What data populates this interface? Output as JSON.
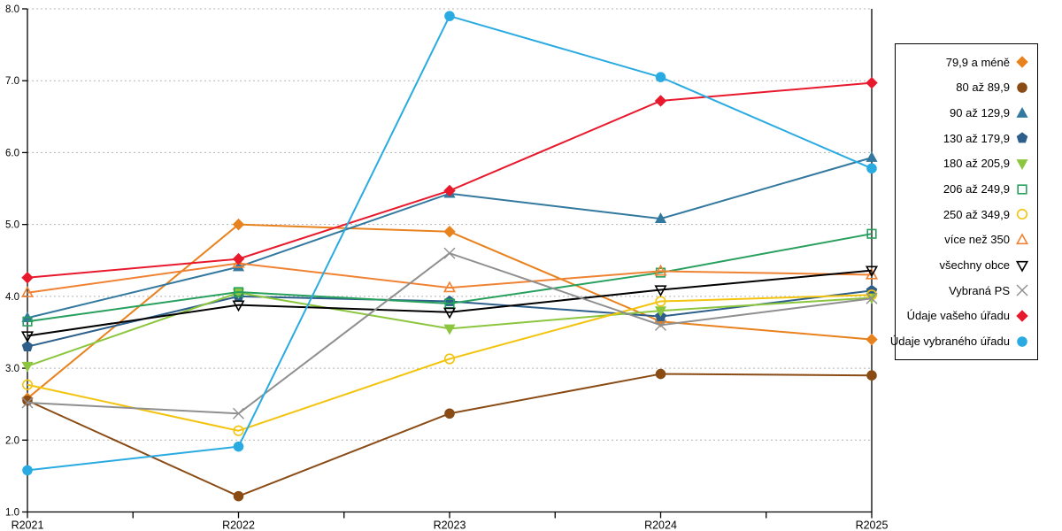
{
  "chart_data": {
    "type": "line",
    "title": "",
    "xlabel": "",
    "ylabel": "",
    "categories": [
      "R2021",
      "R2022",
      "R2023",
      "R2024",
      "R2025"
    ],
    "ylim": [
      1.0,
      8.0
    ],
    "y_tick_labels": [
      "8.0",
      "7.0",
      "6.0",
      "5.0",
      "4.0",
      "3.0",
      "2.0",
      "1.0"
    ],
    "grid": "horizontal-dotted",
    "legend_position": "right-outside",
    "colors": {
      "axis": "#000000",
      "gridline": "#b3b3b3",
      "background": "#ffffff"
    },
    "series": [
      {
        "name": "79,9 a méně",
        "marker": "diamond",
        "fill": "solid",
        "color": "#e8821e",
        "values": [
          2.58,
          5.0,
          4.9,
          3.65,
          3.4
        ]
      },
      {
        "name": "80 až 89,9",
        "marker": "circle",
        "fill": "solid",
        "color": "#8a4b15",
        "values": [
          2.55,
          1.22,
          2.37,
          2.92,
          2.9
        ]
      },
      {
        "name": "90 až 129,9",
        "marker": "triangle-up",
        "fill": "solid",
        "color": "#33789f",
        "values": [
          3.7,
          4.41,
          5.43,
          5.08,
          5.93
        ]
      },
      {
        "name": "130 až 179,9",
        "marker": "pentagon",
        "fill": "solid",
        "color": "#2d5f8a",
        "values": [
          3.3,
          4.0,
          3.93,
          3.72,
          4.08
        ]
      },
      {
        "name": "180 až 205,9",
        "marker": "triangle-down",
        "fill": "solid",
        "color": "#8cc63f",
        "values": [
          3.03,
          4.05,
          3.55,
          3.8,
          3.98
        ]
      },
      {
        "name": "206 až 249,9",
        "marker": "square",
        "fill": "open",
        "color": "#27a05d",
        "values": [
          3.65,
          4.06,
          3.9,
          4.33,
          4.87
        ]
      },
      {
        "name": "250 až 349,9",
        "marker": "circle",
        "fill": "open",
        "color": "#f3c40f",
        "values": [
          2.77,
          2.13,
          3.13,
          3.93,
          4.02
        ]
      },
      {
        "name": "více než 350",
        "marker": "triangle-up",
        "fill": "open",
        "color": "#f08233",
        "values": [
          4.05,
          4.46,
          4.12,
          4.35,
          4.3
        ]
      },
      {
        "name": "všechny obce",
        "marker": "triangle-down",
        "fill": "open",
        "color": "#000000",
        "values": [
          3.45,
          3.88,
          3.78,
          4.09,
          4.36
        ]
      },
      {
        "name": "Vybraná PS",
        "marker": "x",
        "fill": "open",
        "color": "#8f8f8f",
        "values": [
          2.52,
          2.37,
          4.6,
          3.6,
          3.97
        ]
      },
      {
        "name": "Údaje vašeho úřadu",
        "marker": "diamond",
        "fill": "solid",
        "color": "#e8192c",
        "values": [
          4.26,
          4.52,
          5.47,
          6.72,
          6.97
        ]
      },
      {
        "name": "Údaje vybraného úřadu",
        "marker": "circle",
        "fill": "solid",
        "color": "#29abe2",
        "values": [
          1.58,
          1.91,
          7.9,
          7.05,
          5.78
        ]
      }
    ]
  }
}
